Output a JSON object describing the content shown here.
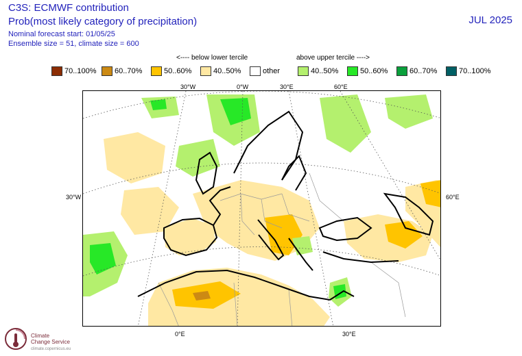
{
  "header": {
    "title": "C3S: ECMWF contribution",
    "subtitle": "Prob(most likely category of precipitation)",
    "forecast_start": "Nominal forecast start: 01/05/25",
    "ensemble": "Ensemble size = 51, climate size = 600",
    "month": "JUL 2025"
  },
  "legend": {
    "below_label": "<---- below lower tercile",
    "above_label": "above upper tercile ---->",
    "items": [
      {
        "label": "70..100%",
        "color": "#8c2d04"
      },
      {
        "label": "60..70%",
        "color": "#cc8a14"
      },
      {
        "label": "50..60%",
        "color": "#ffc400"
      },
      {
        "label": "40..50%",
        "color": "#ffe8a3"
      },
      {
        "label": "other",
        "color": "#ffffff"
      },
      {
        "label": "40..50%",
        "color": "#b4f06e"
      },
      {
        "label": "50..60%",
        "color": "#27e827"
      },
      {
        "label": "60..70%",
        "color": "#0aa03c"
      },
      {
        "label": "70..100%",
        "color": "#005f64"
      }
    ]
  },
  "map": {
    "top_labels": [
      "30°W",
      "0°W",
      "30°E",
      "60°E"
    ],
    "left_label": "30°W",
    "right_label": "60°E",
    "bottom_labels": [
      "0°E",
      "30°E"
    ]
  },
  "logo": {
    "line1": "Climate",
    "line2": "Change Service",
    "url": "climate.copernicus.eu"
  }
}
